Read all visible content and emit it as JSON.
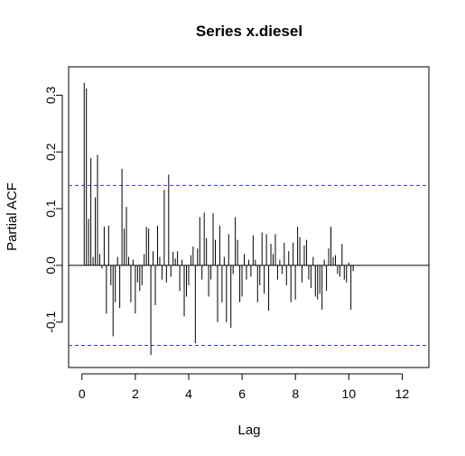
{
  "chart_data": {
    "type": "bar",
    "title": "Series  x.diesel",
    "xlabel": "Lag",
    "ylabel": "Partial ACF",
    "xlim": [
      -0.5,
      13.0
    ],
    "ylim": [
      -0.18,
      0.35
    ],
    "x_ticks": [
      "0",
      "2",
      "4",
      "6",
      "8",
      "10",
      "12"
    ],
    "y_ticks": [
      "-0.1",
      "0.0",
      "0.1",
      "0.2",
      "0.3"
    ],
    "confidence_bound": 0.141,
    "confidence_color": "#3333ff",
    "bar_color": "#000000",
    "lag_step": 0.0833,
    "pacf": [
      0.322,
      0.312,
      0.082,
      0.189,
      0.015,
      0.12,
      0.195,
      0.02,
      -0.005,
      0.068,
      -0.085,
      0.07,
      -0.035,
      -0.125,
      -0.065,
      0.015,
      -0.075,
      0.17,
      0.065,
      0.103,
      0.015,
      -0.065,
      0.01,
      -0.085,
      -0.03,
      -0.045,
      -0.035,
      0.02,
      0.068,
      0.065,
      -0.158,
      0.025,
      -0.07,
      0.07,
      0.015,
      -0.025,
      0.133,
      -0.03,
      0.16,
      -0.02,
      0.024,
      0.012,
      0.025,
      -0.045,
      0.01,
      -0.09,
      -0.055,
      -0.035,
      0.018,
      0.033,
      -0.137,
      0.03,
      0.085,
      -0.025,
      0.093,
      0.048,
      -0.055,
      -0.025,
      0.092,
      0.045,
      -0.1,
      0.07,
      -0.065,
      0.015,
      -0.1,
      0.055,
      -0.11,
      -0.015,
      0.085,
      0.045,
      -0.065,
      -0.055,
      0.02,
      -0.025,
      0.01,
      -0.02,
      0.053,
      0.01,
      -0.065,
      -0.035,
      0.058,
      -0.05,
      0.055,
      -0.08,
      0.038,
      0.02,
      0.055,
      -0.025,
      0.01,
      -0.015,
      0.04,
      -0.035,
      0.025,
      -0.065,
      0.04,
      -0.06,
      0.068,
      0.05,
      -0.03,
      0.035,
      0.045,
      -0.025,
      -0.04,
      0.015,
      -0.055,
      -0.06,
      -0.05,
      -0.078,
      0.01,
      -0.045,
      0.03,
      0.068,
      0.015,
      0.018,
      -0.015,
      -0.02,
      0.038,
      -0.025,
      -0.03,
      0.005,
      -0.078,
      -0.01
    ]
  }
}
